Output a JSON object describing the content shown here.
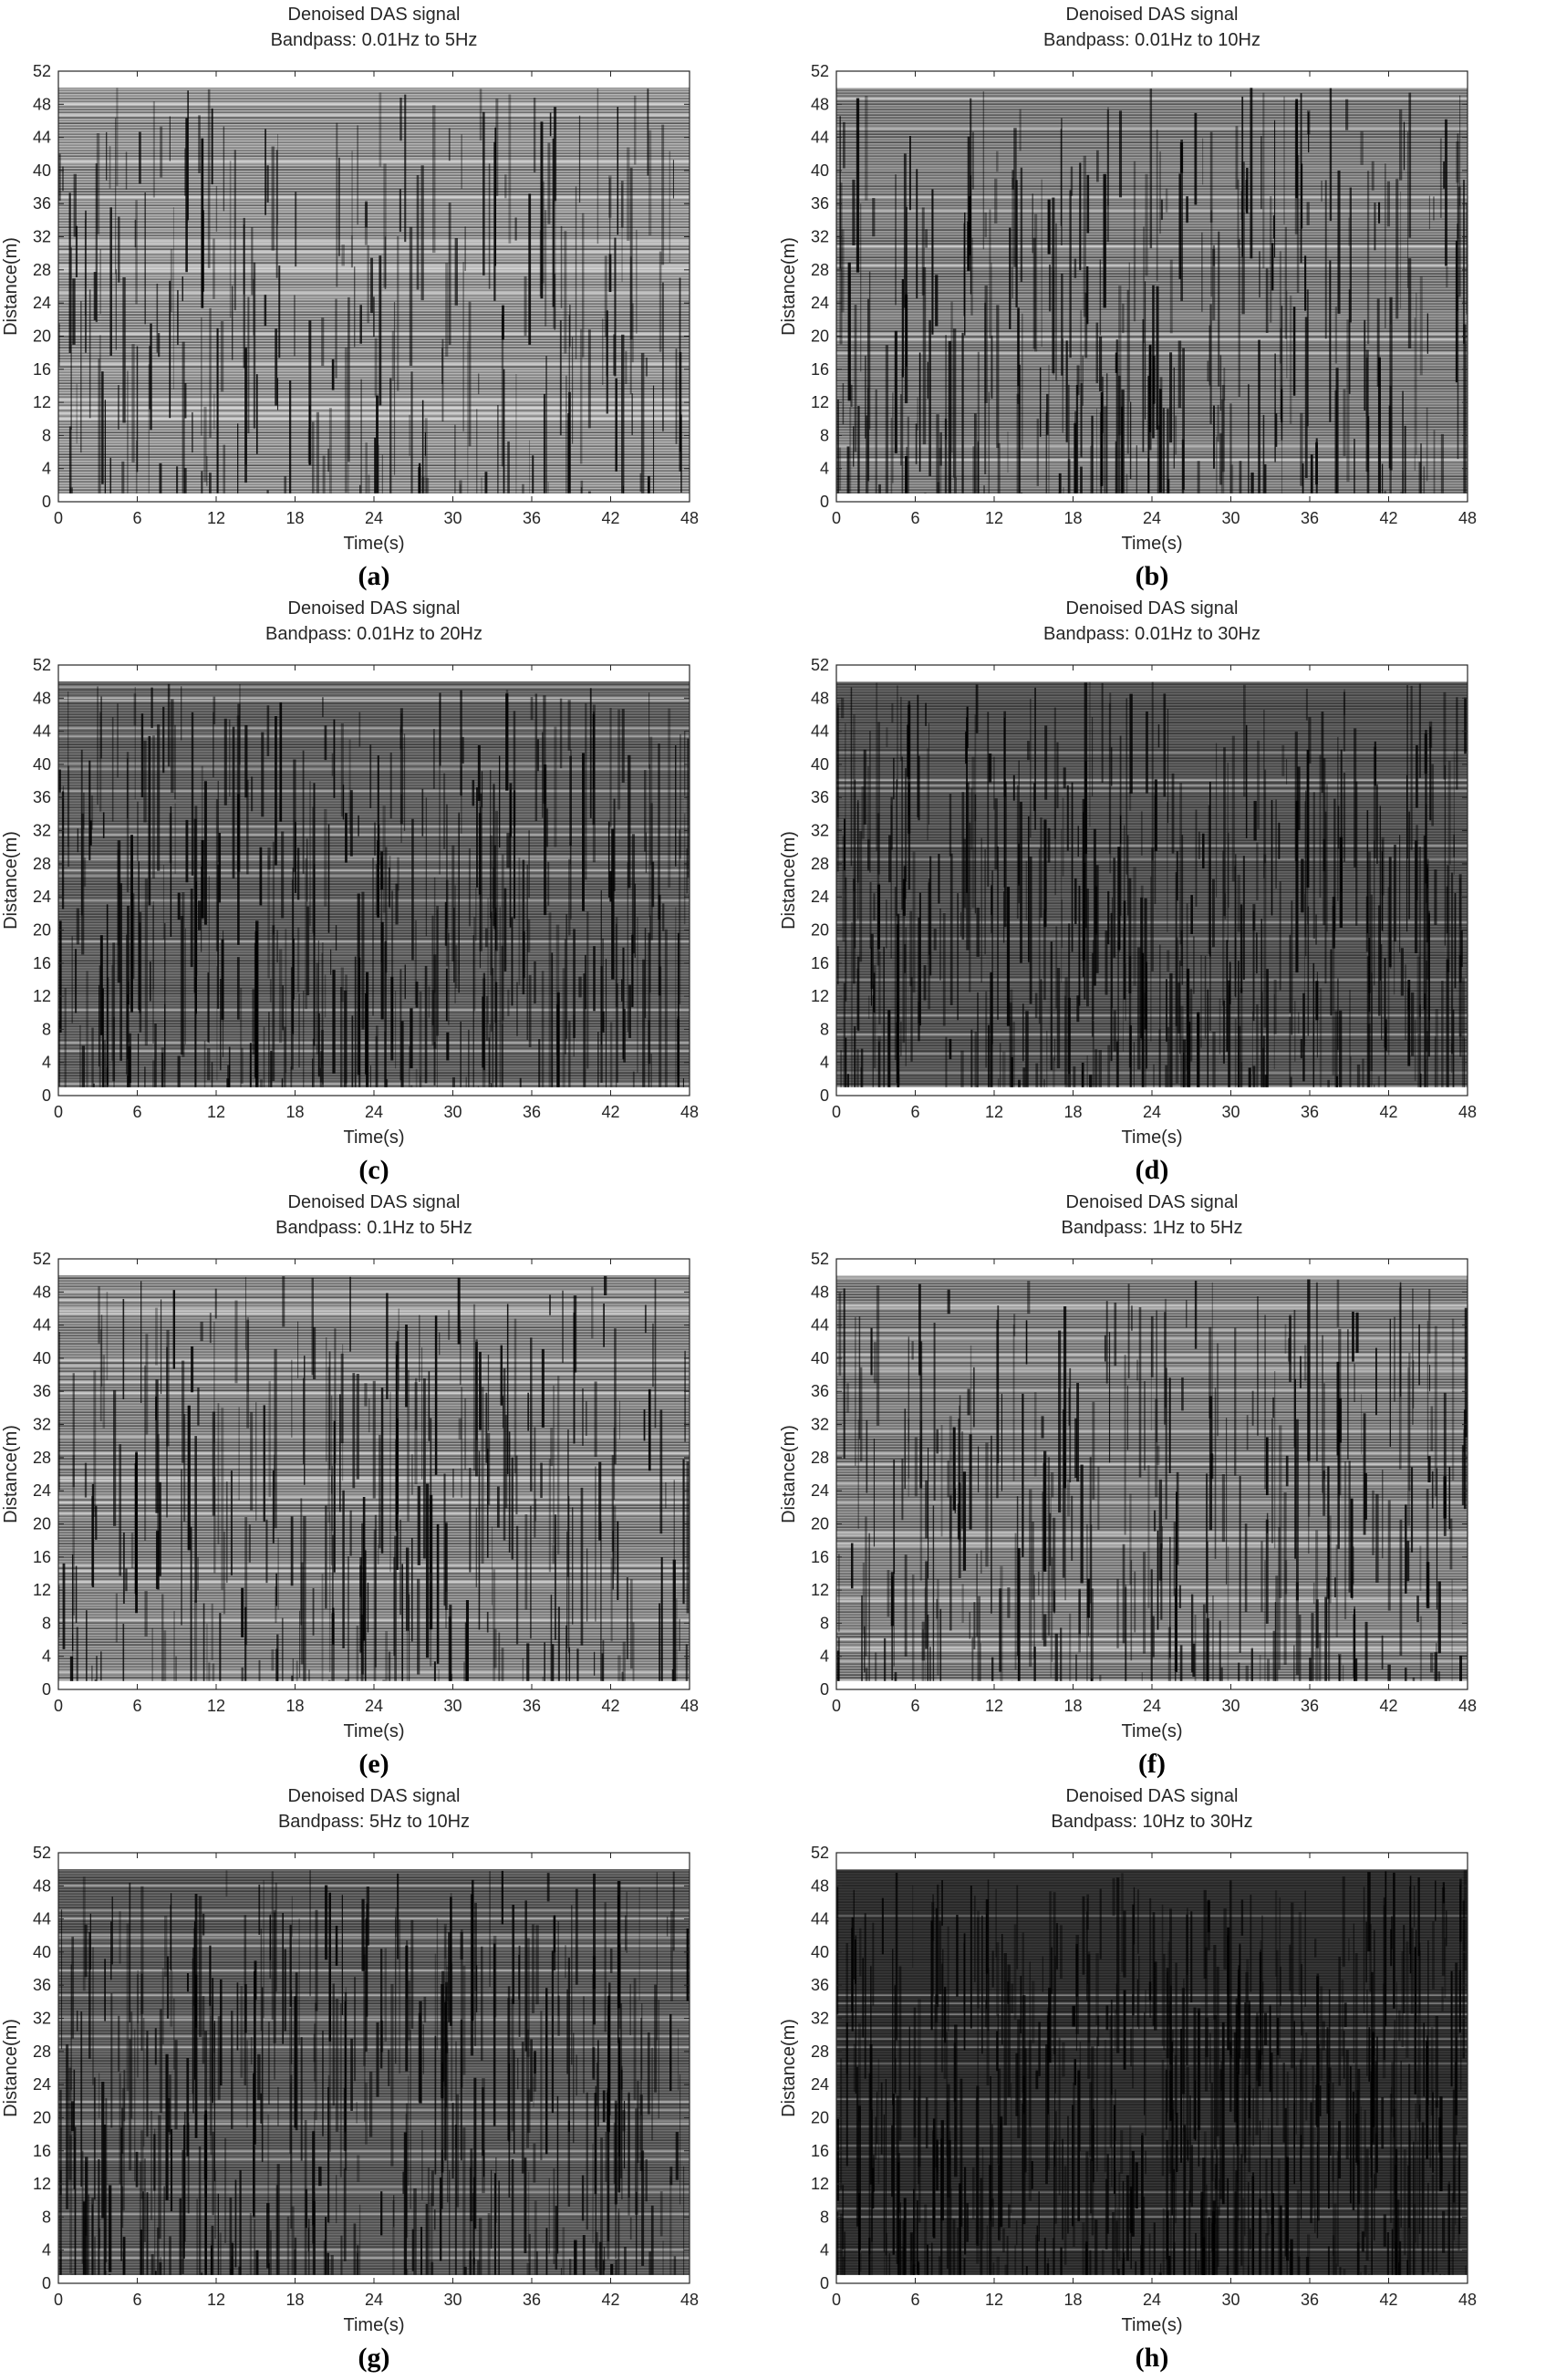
{
  "chart_data": [
    {
      "type": "heatmap",
      "panel": "(a)",
      "title": "Denoised DAS signal",
      "subtitle": "Bandpass: 0.01Hz to 5Hz",
      "xlabel": "Time(s)",
      "ylabel": "Distance(m)",
      "xlim": [
        0,
        48
      ],
      "ylim": [
        0,
        52
      ],
      "xticks": [
        0,
        6,
        12,
        18,
        24,
        30,
        36,
        42,
        48
      ],
      "yticks": [
        0,
        4,
        8,
        12,
        16,
        20,
        24,
        28,
        32,
        36,
        40,
        44,
        48,
        52
      ],
      "data_extent": {
        "x": [
          0,
          48
        ],
        "y": [
          1,
          50
        ]
      },
      "density": 0.2
    },
    {
      "type": "heatmap",
      "panel": "(b)",
      "title": "Denoised DAS signal",
      "subtitle": "Bandpass: 0.01Hz to 10Hz",
      "xlabel": "Time(s)",
      "ylabel": "Distance(m)",
      "xlim": [
        0,
        48
      ],
      "ylim": [
        0,
        52
      ],
      "xticks": [
        0,
        6,
        12,
        18,
        24,
        30,
        36,
        42,
        48
      ],
      "yticks": [
        0,
        4,
        8,
        12,
        16,
        20,
        24,
        28,
        32,
        36,
        40,
        44,
        48,
        52
      ],
      "data_extent": {
        "x": [
          0,
          48
        ],
        "y": [
          1,
          50
        ]
      },
      "density": 0.35
    },
    {
      "type": "heatmap",
      "panel": "(c)",
      "title": "Denoised DAS signal",
      "subtitle": "Bandpass: 0.01Hz to 20Hz",
      "xlabel": "Time(s)",
      "ylabel": "Distance(m)",
      "xlim": [
        0,
        48
      ],
      "ylim": [
        0,
        52
      ],
      "xticks": [
        0,
        6,
        12,
        18,
        24,
        30,
        36,
        42,
        48
      ],
      "yticks": [
        0,
        4,
        8,
        12,
        16,
        20,
        24,
        28,
        32,
        36,
        40,
        44,
        48,
        52
      ],
      "data_extent": {
        "x": [
          0,
          48
        ],
        "y": [
          1,
          50
        ]
      },
      "density": 0.55
    },
    {
      "type": "heatmap",
      "panel": "(d)",
      "title": "Denoised DAS signal",
      "subtitle": "Bandpass: 0.01Hz to 30Hz",
      "xlabel": "Time(s)",
      "ylabel": "Distance(m)",
      "xlim": [
        0,
        48
      ],
      "ylim": [
        0,
        52
      ],
      "xticks": [
        0,
        6,
        12,
        18,
        24,
        30,
        36,
        42,
        48
      ],
      "yticks": [
        0,
        4,
        8,
        12,
        16,
        20,
        24,
        28,
        32,
        36,
        40,
        44,
        48,
        52
      ],
      "data_extent": {
        "x": [
          0,
          48
        ],
        "y": [
          1,
          50
        ]
      },
      "density": 0.65
    },
    {
      "type": "heatmap",
      "panel": "(e)",
      "title": "Denoised DAS signal",
      "subtitle": "Bandpass: 0.1Hz to 5Hz",
      "xlabel": "Time(s)",
      "ylabel": "Distance(m)",
      "xlim": [
        0,
        48
      ],
      "ylim": [
        0,
        52
      ],
      "xticks": [
        0,
        6,
        12,
        18,
        24,
        30,
        36,
        42,
        48
      ],
      "yticks": [
        0,
        4,
        8,
        12,
        16,
        20,
        24,
        28,
        32,
        36,
        40,
        44,
        48,
        52
      ],
      "data_extent": {
        "x": [
          0,
          48
        ],
        "y": [
          1,
          50
        ]
      },
      "density": 0.3
    },
    {
      "type": "heatmap",
      "panel": "(f)",
      "title": "Denoised DAS signal",
      "subtitle": "Bandpass: 1Hz to 5Hz",
      "xlabel": "Time(s)",
      "ylabel": "Distance(m)",
      "xlim": [
        0,
        48
      ],
      "ylim": [
        0,
        52
      ],
      "xticks": [
        0,
        6,
        12,
        18,
        24,
        30,
        36,
        42,
        48
      ],
      "yticks": [
        0,
        4,
        8,
        12,
        16,
        20,
        24,
        28,
        32,
        36,
        40,
        44,
        48,
        52
      ],
      "data_extent": {
        "x": [
          0,
          48
        ],
        "y": [
          1,
          50
        ]
      },
      "density": 0.35
    },
    {
      "type": "heatmap",
      "panel": "(g)",
      "title": "Denoised DAS signal",
      "subtitle": "Bandpass: 5Hz to 10Hz",
      "xlabel": "Time(s)",
      "ylabel": "Distance(m)",
      "xlim": [
        0,
        48
      ],
      "ylim": [
        0,
        52
      ],
      "xticks": [
        0,
        6,
        12,
        18,
        24,
        30,
        36,
        42,
        48
      ],
      "yticks": [
        0,
        4,
        8,
        12,
        16,
        20,
        24,
        28,
        32,
        36,
        40,
        44,
        48,
        52
      ],
      "data_extent": {
        "x": [
          0,
          48
        ],
        "y": [
          1,
          50
        ]
      },
      "density": 0.6
    },
    {
      "type": "heatmap",
      "panel": "(h)",
      "title": "Denoised DAS signal",
      "subtitle": "Bandpass: 10Hz to 30Hz",
      "xlabel": "Time(s)",
      "ylabel": "Distance(m)",
      "xlim": [
        0,
        48
      ],
      "ylim": [
        0,
        52
      ],
      "xticks": [
        0,
        6,
        12,
        18,
        24,
        30,
        36,
        42,
        48
      ],
      "yticks": [
        0,
        4,
        8,
        12,
        16,
        20,
        24,
        28,
        32,
        36,
        40,
        44,
        48,
        52
      ],
      "data_extent": {
        "x": [
          0,
          48
        ],
        "y": [
          1,
          50
        ]
      },
      "density": 0.9
    }
  ]
}
